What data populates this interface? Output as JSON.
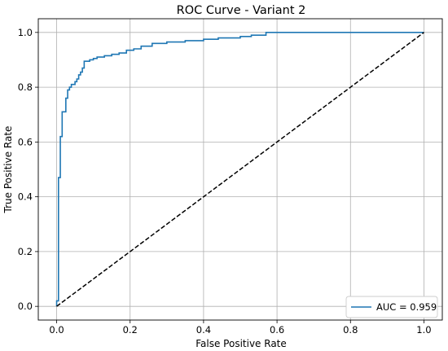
{
  "chart_data": {
    "type": "line",
    "title": "ROC Curve - Variant 2",
    "xlabel": "False Positive Rate",
    "ylabel": "True Positive Rate",
    "xlim": [
      -0.05,
      1.05
    ],
    "ylim": [
      -0.05,
      1.05
    ],
    "xticks": [
      "0.0",
      "0.2",
      "0.4",
      "0.6",
      "0.8",
      "1.0"
    ],
    "yticks": [
      "0.0",
      "0.2",
      "0.4",
      "0.6",
      "0.8",
      "1.0"
    ],
    "grid": true,
    "legend_position": "lower-right",
    "series": [
      {
        "name": "AUC = 0.959",
        "color": "#1f77b4",
        "style": "solid",
        "points": [
          [
            0.0,
            0.0
          ],
          [
            0.0,
            0.02
          ],
          [
            0.005,
            0.02
          ],
          [
            0.005,
            0.47
          ],
          [
            0.01,
            0.47
          ],
          [
            0.01,
            0.62
          ],
          [
            0.015,
            0.62
          ],
          [
            0.015,
            0.71
          ],
          [
            0.025,
            0.71
          ],
          [
            0.025,
            0.76
          ],
          [
            0.03,
            0.76
          ],
          [
            0.03,
            0.79
          ],
          [
            0.035,
            0.79
          ],
          [
            0.035,
            0.8
          ],
          [
            0.04,
            0.8
          ],
          [
            0.04,
            0.81
          ],
          [
            0.05,
            0.81
          ],
          [
            0.05,
            0.82
          ],
          [
            0.055,
            0.82
          ],
          [
            0.055,
            0.83
          ],
          [
            0.06,
            0.83
          ],
          [
            0.06,
            0.845
          ],
          [
            0.065,
            0.845
          ],
          [
            0.065,
            0.855
          ],
          [
            0.07,
            0.855
          ],
          [
            0.07,
            0.87
          ],
          [
            0.075,
            0.87
          ],
          [
            0.075,
            0.895
          ],
          [
            0.09,
            0.895
          ],
          [
            0.09,
            0.9
          ],
          [
            0.1,
            0.9
          ],
          [
            0.1,
            0.905
          ],
          [
            0.11,
            0.905
          ],
          [
            0.11,
            0.91
          ],
          [
            0.13,
            0.91
          ],
          [
            0.13,
            0.915
          ],
          [
            0.15,
            0.915
          ],
          [
            0.15,
            0.92
          ],
          [
            0.17,
            0.92
          ],
          [
            0.17,
            0.925
          ],
          [
            0.19,
            0.925
          ],
          [
            0.19,
            0.935
          ],
          [
            0.21,
            0.935
          ],
          [
            0.21,
            0.94
          ],
          [
            0.23,
            0.94
          ],
          [
            0.23,
            0.95
          ],
          [
            0.26,
            0.95
          ],
          [
            0.26,
            0.96
          ],
          [
            0.3,
            0.96
          ],
          [
            0.3,
            0.965
          ],
          [
            0.35,
            0.965
          ],
          [
            0.35,
            0.97
          ],
          [
            0.4,
            0.97
          ],
          [
            0.4,
            0.975
          ],
          [
            0.44,
            0.975
          ],
          [
            0.44,
            0.98
          ],
          [
            0.5,
            0.98
          ],
          [
            0.5,
            0.985
          ],
          [
            0.53,
            0.985
          ],
          [
            0.53,
            0.99
          ],
          [
            0.57,
            0.99
          ],
          [
            0.57,
            1.0
          ],
          [
            1.0,
            1.0
          ]
        ]
      },
      {
        "name": "",
        "color": "#000000",
        "style": "dashed",
        "points": [
          [
            0.0,
            0.0
          ],
          [
            1.0,
            1.0
          ]
        ]
      }
    ]
  }
}
